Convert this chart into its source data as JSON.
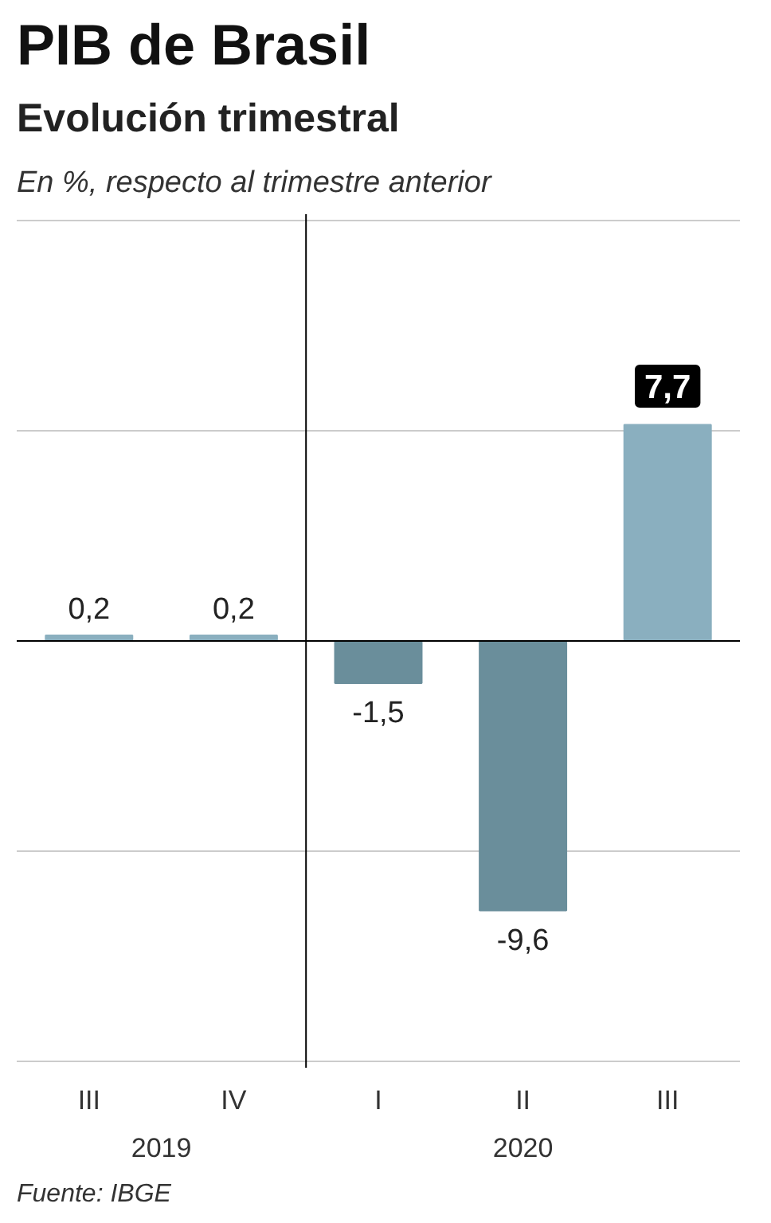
{
  "chart_data": {
    "type": "bar",
    "title": "PIB de Brasil",
    "subtitle": "Evolución trimestral",
    "categories": [
      "III",
      "IV",
      "I",
      "II",
      "III"
    ],
    "values": [
      0.2,
      0.2,
      -1.5,
      -9.6,
      7.7
    ],
    "colors": [
      "#8aafbf",
      "#8aafbf",
      "#6a8e9b",
      "#6a8e9b",
      "#8aafbf"
    ],
    "value_labels": [
      "0,2",
      "0,2",
      "-1,5",
      "-9,6",
      "7,7"
    ],
    "ylim": [
      -15.2,
      15.2
    ],
    "yticks": [
      {
        "value": -15,
        "label": null
      },
      {
        "value": -7.5,
        "label": null
      },
      {
        "value": 0,
        "label": null
      },
      {
        "value": 7.5,
        "label": null
      },
      {
        "value": 15,
        "label": null
      }
    ],
    "grid": "y",
    "tick_labels": "x",
    "annotations": [
      "En %, respecto al trimestre anterior",
      "2019",
      "2020",
      "Fuente: IBGE"
    ]
  }
}
